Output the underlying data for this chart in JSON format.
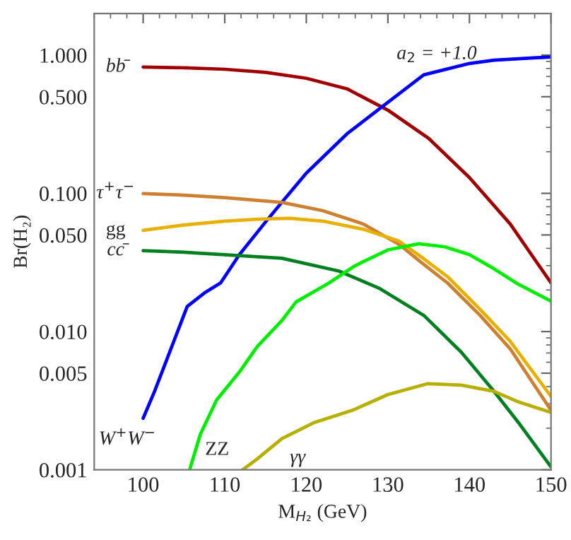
{
  "chart_data": {
    "type": "line",
    "xlabel": "M$_{H₂}$ (GeV)",
    "ylabel": "Br(H₂)",
    "log": "y",
    "grid": false,
    "legend": false,
    "marker": "none",
    "line_style": "solid",
    "xlim": [
      94,
      150
    ],
    "xticks": [
      100,
      110,
      120,
      130,
      140,
      150
    ],
    "ylim": [
      0.001,
      2
    ],
    "yticks": [
      {
        "value": 0.001,
        "label": "0.001"
      },
      {
        "value": 0.005,
        "label": "0.005"
      },
      {
        "value": 0.01,
        "label": "0.010"
      },
      {
        "value": 0.05,
        "label": "0.050"
      },
      {
        "value": 0.1,
        "label": "0.100"
      },
      {
        "value": 0.5,
        "label": "0.500"
      },
      {
        "value": 1,
        "label": "1.000"
      }
    ],
    "series": [
      {
        "name": "bb̄",
        "color": "#a00000",
        "x": [
          100,
          105,
          110,
          115,
          120,
          125,
          130,
          135,
          140,
          145,
          150
        ],
        "values": [
          0.82,
          0.81,
          0.79,
          0.75,
          0.68,
          0.57,
          0.4,
          0.25,
          0.13,
          0.06,
          0.0225
        ]
      },
      {
        "name": "W$^{+}$W$^{−}$",
        "color": "#0000ff",
        "x": [
          100,
          101.4,
          103,
          105.4,
          107.5,
          109.5,
          111.8,
          115,
          117,
          120,
          125,
          129,
          134.4,
          140,
          143,
          150
        ],
        "values": [
          0.00236,
          0.0037,
          0.0065,
          0.0152,
          0.019,
          0.0225,
          0.036,
          0.062,
          0.086,
          0.14,
          0.27,
          0.41,
          0.72,
          0.87,
          0.92,
          0.97
        ]
      },
      {
        "name": "τ$^{+}$τ$^{−}$",
        "color": "#cc8030",
        "x": [
          100,
          105,
          110,
          117,
          122,
          127,
          131.4,
          134,
          137.3,
          141.3,
          145,
          150
        ],
        "values": [
          0.0995,
          0.097,
          0.093,
          0.086,
          0.075,
          0.06,
          0.0426,
          0.032,
          0.0225,
          0.0131,
          0.0075,
          0.0027
        ]
      },
      {
        "name": "gg",
        "color": "#e8b000",
        "x": [
          100,
          105,
          110,
          114,
          118,
          122,
          127,
          131.4,
          134,
          137.3,
          141.3,
          145,
          150
        ],
        "values": [
          0.054,
          0.059,
          0.063,
          0.065,
          0.066,
          0.063,
          0.055,
          0.045,
          0.035,
          0.025,
          0.0145,
          0.0085,
          0.0034
        ]
      },
      {
        "name": "cc̄",
        "color": "#008020",
        "x": [
          100,
          105,
          110,
          117,
          124,
          129,
          134.4,
          139,
          143,
          146,
          150
        ],
        "values": [
          0.0385,
          0.0375,
          0.036,
          0.0339,
          0.0274,
          0.0205,
          0.0131,
          0.0071,
          0.0037,
          0.0022,
          0.00105
        ]
      },
      {
        "name": "ZZ",
        "color": "#00ee00",
        "x": [
          105.7,
          107,
          109,
          111.8,
          114,
          117,
          118.75,
          122.8,
          126,
          130,
          133.8,
          137,
          140,
          143,
          146,
          150
        ],
        "values": [
          0.001,
          0.0018,
          0.0032,
          0.0051,
          0.0078,
          0.012,
          0.0164,
          0.0225,
          0.03,
          0.039,
          0.0432,
          0.041,
          0.036,
          0.0285,
          0.022,
          0.0166
        ]
      },
      {
        "name": "γγ",
        "color": "#b8b000",
        "x": [
          112.2,
          114,
          117,
          121,
          125.7,
          130,
          134.9,
          139,
          143,
          146,
          150
        ],
        "values": [
          0.001,
          0.0012,
          0.00168,
          0.0022,
          0.0027,
          0.0035,
          0.0042,
          0.0041,
          0.0037,
          0.0031,
          0.0026
        ]
      }
    ],
    "annotations": [
      "a$_{2}$ = +1.0"
    ]
  }
}
